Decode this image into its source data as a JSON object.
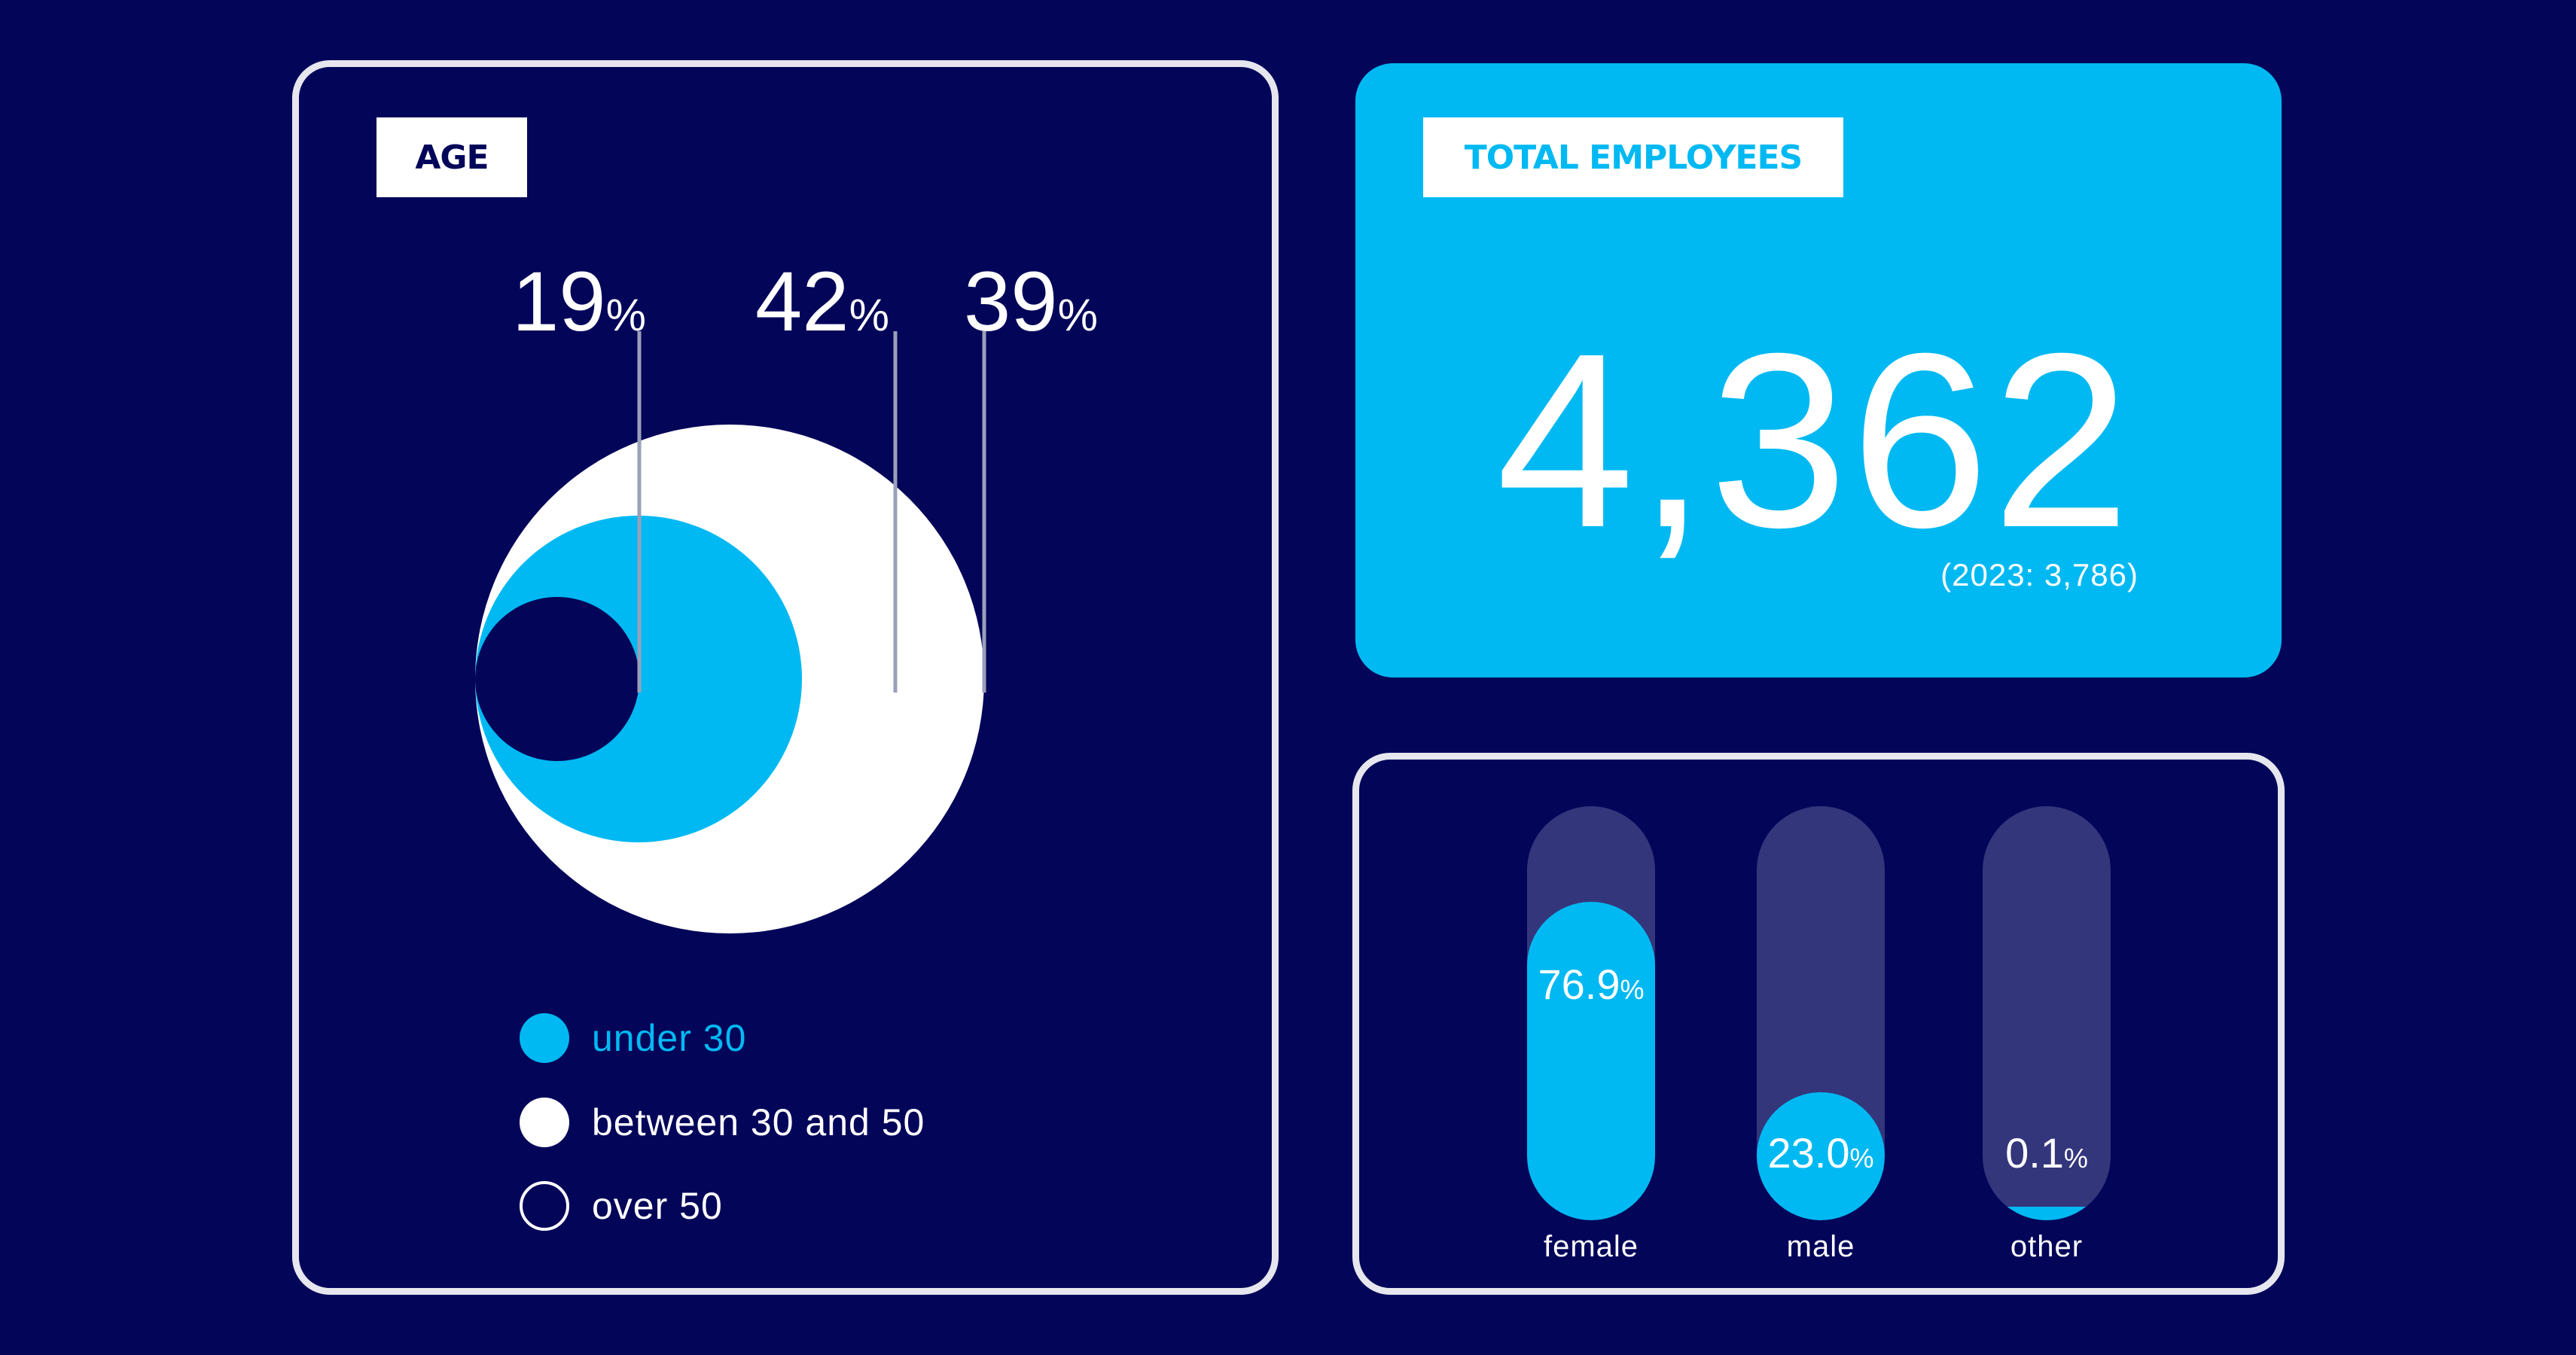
{
  "age_panel": {
    "tag": "AGE"
  },
  "total_panel": {
    "tag": "TOTAL EMPLOYEES",
    "value": "4,362",
    "previous": "(2023: 3,786)"
  },
  "colors": {
    "background": "#030559",
    "accent": "#00b9f2",
    "white": "#ffffff",
    "track": "#34367c"
  },
  "chart_data": [
    {
      "type": "pie",
      "categories": [
        "under 30",
        "between 30 and 50",
        "over 50"
      ],
      "values": [
        42,
        39,
        19
      ],
      "data_labels": [
        {
          "number": "19",
          "unit": "%"
        },
        {
          "number": "42",
          "unit": "%"
        },
        {
          "number": "39",
          "unit": "%"
        }
      ],
      "legend": [
        {
          "label": "under 30",
          "color": "#00b9f2",
          "style": "filled"
        },
        {
          "label": "between 30 and 50",
          "color": "#ffffff",
          "style": "filled"
        },
        {
          "label": "over 50",
          "color": "#030559",
          "style": "outline"
        }
      ],
      "legend_placement": "bottom"
    },
    {
      "type": "bar",
      "categories": [
        "female",
        "male",
        "other"
      ],
      "values": [
        76.9,
        23.0,
        0.1
      ],
      "value_labels": [
        {
          "number": "76.9",
          "unit": "%"
        },
        {
          "number": "23.0",
          "unit": "%"
        },
        {
          "number": "0.1",
          "unit": "%"
        }
      ],
      "ylim": [
        0,
        100
      ]
    }
  ]
}
